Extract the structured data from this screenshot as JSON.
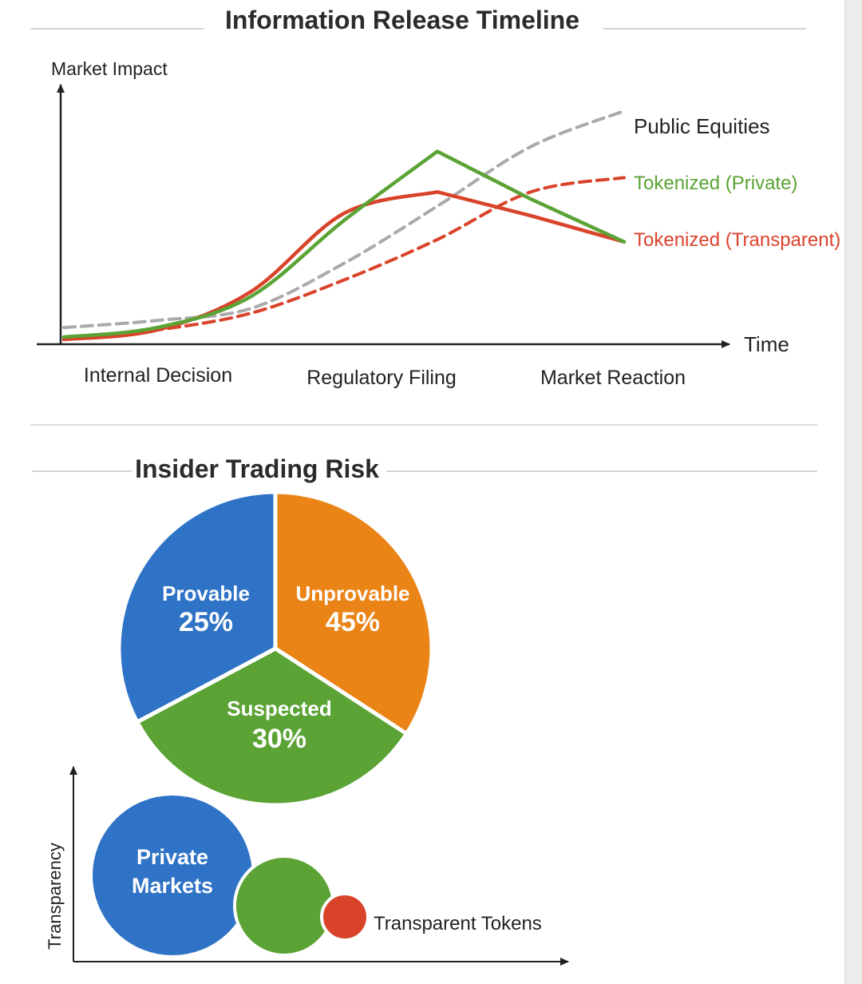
{
  "colors": {
    "public": "#aaaaaa",
    "private": "#5aa334",
    "transparent": "#d9432a",
    "pie_blue": "#2f73c6",
    "pie_orange": "#ea8417",
    "pie_green": "#5aa334",
    "axis": "#222222",
    "divider": "#d4d4d4"
  },
  "chart_data": [
    {
      "type": "line",
      "title": "Information Release Timeline",
      "ylabel": "Market Impact",
      "xlabel": "Time",
      "categories": [
        "Internal Decision",
        "Regulatory Filing",
        "Market Reaction"
      ],
      "x": [
        0,
        0.5,
        1,
        1.5,
        2,
        2.5,
        3
      ],
      "ylim": [
        0,
        100
      ],
      "grid": false,
      "legend": "inline-right",
      "series": [
        {
          "name": "Public Equities",
          "style": "dashed",
          "color": "#aaaaaa",
          "values": [
            6,
            9,
            14,
            33,
            57,
            82,
            97
          ]
        },
        {
          "name": "Tokenized (Private)",
          "style": "solid",
          "color": "#5aa334",
          "values": [
            2,
            6,
            19,
            51,
            80,
            60,
            42
          ]
        },
        {
          "name": "Tokenized (Transparent)",
          "style": "solid",
          "color": "#d9432a",
          "values": [
            1,
            5,
            21,
            54,
            63,
            53,
            42
          ]
        },
        {
          "name": "",
          "style": "dashed",
          "color": "#d9432a",
          "values": [
            1,
            5,
            12,
            26,
            43,
            63,
            69
          ]
        }
      ]
    },
    {
      "type": "pie",
      "title": "Insider Trading Risk",
      "slices": [
        {
          "label": "Provable",
          "value": 25,
          "display": "25%",
          "color": "#2f73c6"
        },
        {
          "label": "Unprovable",
          "value": 45,
          "display": "45%",
          "color": "#ea8417"
        },
        {
          "label": "Suspected",
          "value": 30,
          "display": "30%",
          "color": "#5aa334"
        }
      ]
    },
    {
      "type": "scatter",
      "ylabel": "Transparency",
      "points": [
        {
          "label": "Private Markets",
          "color": "#2f73c6",
          "size": "large"
        },
        {
          "label": "",
          "color": "#5aa334",
          "size": "medium"
        },
        {
          "label": "Transparent Tokens",
          "color": "#d9432a",
          "size": "small"
        }
      ]
    }
  ]
}
